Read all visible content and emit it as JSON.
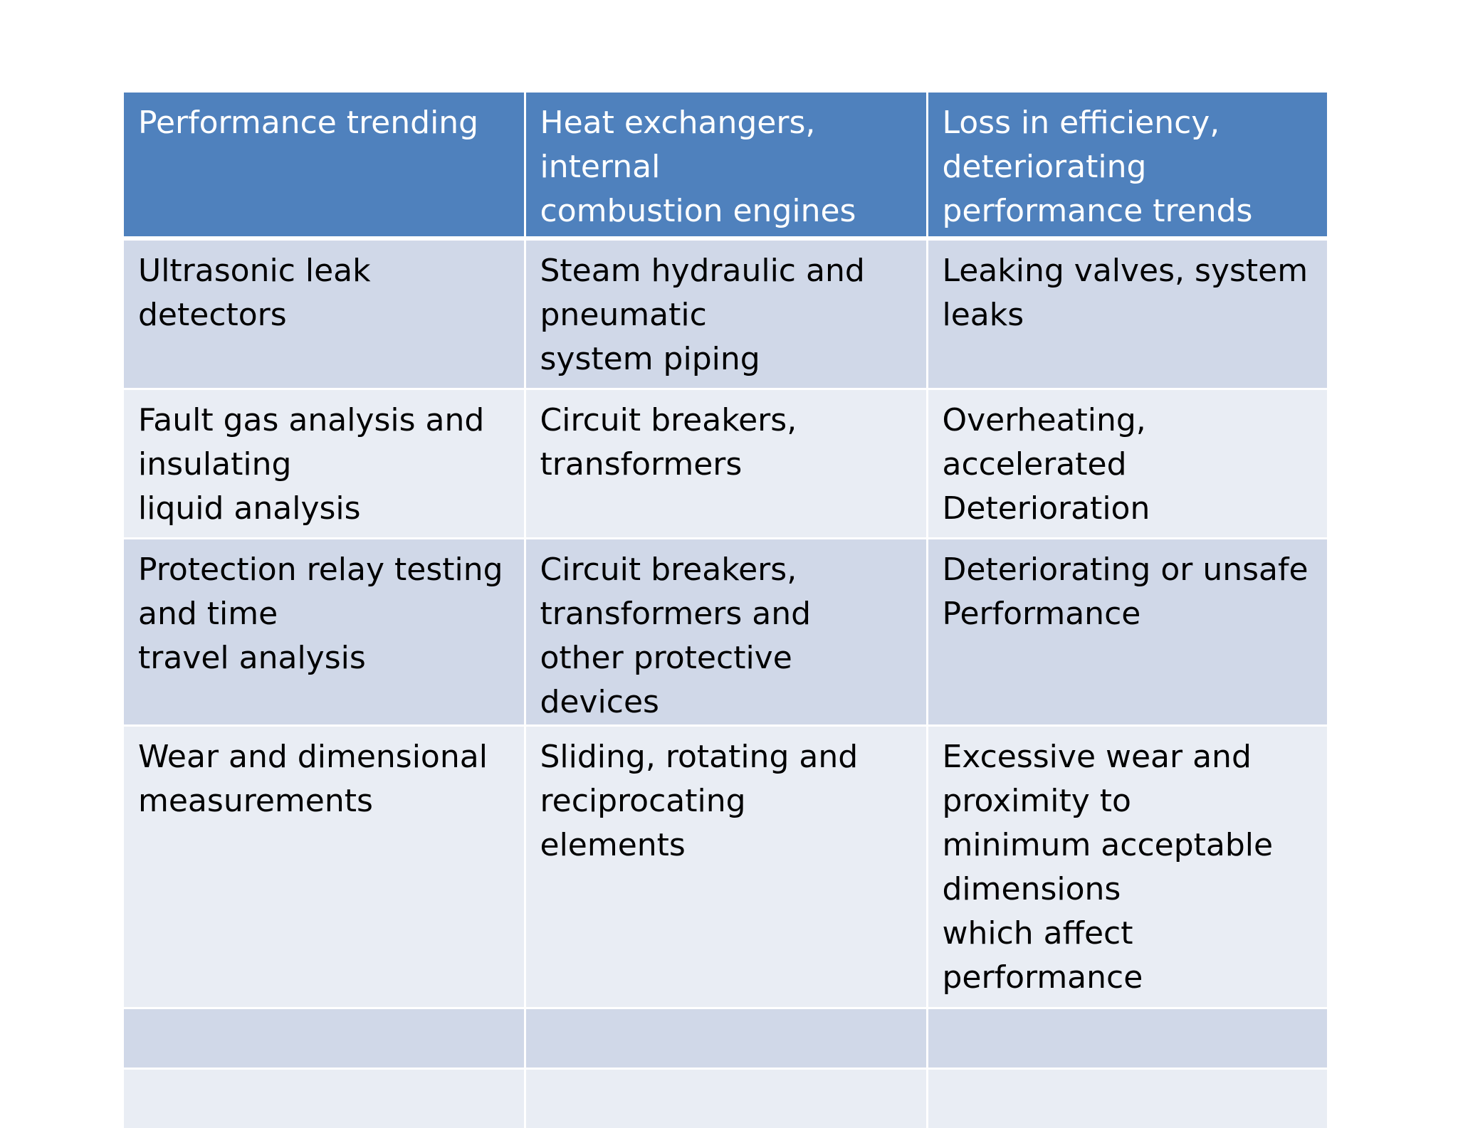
{
  "table": {
    "header": [
      "Performance trending",
      "Heat exchangers,\ninternal\ncombustion engines",
      "Loss in efficiency,\ndeteriorating\nperformance trends"
    ],
    "rows": [
      [
        "Ultrasonic leak detectors",
        "Steam hydraulic and\npneumatic\nsystem piping",
        "Leaking valves, system\nleaks"
      ],
      [
        "Fault gas analysis and\ninsulating\nliquid analysis",
        "Circuit breakers,\ntransformers",
        "Overheating,\naccelerated\nDeterioration"
      ],
      [
        "Protection relay testing\nand time\ntravel analysis",
        "Circuit breakers,\ntransformers and\nother protective devices",
        "Deteriorating or unsafe\nPerformance"
      ],
      [
        "Wear and dimensional\nmeasurements",
        "Sliding, rotating and\nreciprocating\nelements",
        "Excessive wear and\nproximity to\nminimum acceptable\ndimensions\nwhich affect\nperformance"
      ],
      [
        "",
        "",
        ""
      ],
      [
        "",
        "",
        ""
      ]
    ]
  },
  "colors": {
    "header_bg": "#4f81bd",
    "band_dark": "#d0d8e8",
    "band_light": "#e9edf4"
  }
}
